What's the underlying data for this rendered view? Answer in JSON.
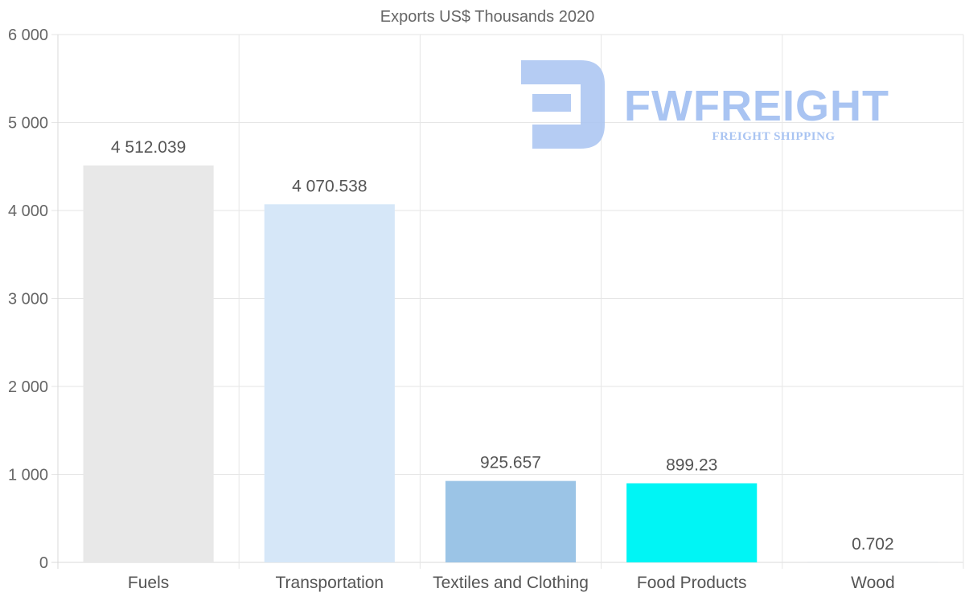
{
  "chart_data": {
    "type": "bar",
    "title": "Exports US$ Thousands 2020",
    "categories": [
      "Fuels",
      "Transportation",
      "Textiles and Clothing",
      "Food Products",
      "Wood"
    ],
    "values": [
      4512.039,
      4070.538,
      925.657,
      899.23,
      0.702
    ],
    "value_labels": [
      "4 512.039",
      "4 070.538",
      "925.657",
      "899.23",
      "0.702"
    ],
    "colors": [
      "#e8e8e8",
      "#d6e7f8",
      "#9bc4e6",
      "#00f5f5",
      "#9bc4e6"
    ],
    "ylim": [
      0,
      6000
    ],
    "yticks": [
      0,
      1000,
      2000,
      3000,
      4000,
      5000,
      6000
    ],
    "ytick_labels": [
      "0",
      "1 000",
      "2 000",
      "3 000",
      "4 000",
      "5 000",
      "6 000"
    ],
    "xlabel": "",
    "ylabel": "",
    "grid": true,
    "legend": "none"
  },
  "watermark": {
    "brand": "FWFREIGHT",
    "tagline": "FREIGHT SHIPPING",
    "color": "#a9c4f2"
  }
}
